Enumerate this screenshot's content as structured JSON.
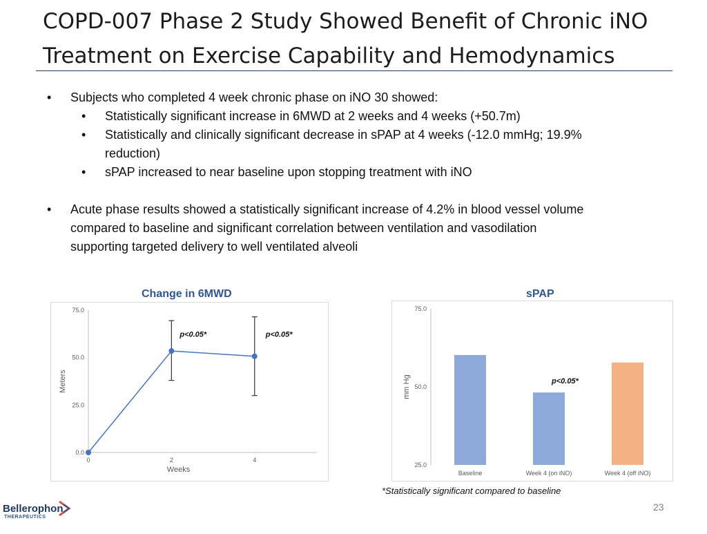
{
  "slide": {
    "title_line1": "COPD-007 Phase 2 Study Showed Benefit of Chronic iNO",
    "title_line2": "Treatment on Exercise Capability and Hemodynamics",
    "page_number": "23",
    "footnote": "*Statistically significant compared to baseline",
    "logo": {
      "name": "Bellerophon",
      "sub": "THERAPEUTICS"
    }
  },
  "bullets": {
    "b1": "Subjects who completed 4 week chronic phase on iNO 30 showed:",
    "b1_sub1": "Statistically significant increase in 6MWD at 2 weeks and 4 weeks (+50.7m)",
    "b1_sub2_line1": "Statistically and clinically significant decrease in sPAP at 4 weeks (-12.0 mmHg; 19.9%",
    "b1_sub2_line2": "reduction)",
    "b1_sub3": "sPAP increased to near baseline upon stopping treatment with iNO",
    "b2_line1": "Acute phase results showed a statistically significant increase of 4.2% in blood vessel volume",
    "b2_line2": "compared to baseline and significant correlation between ventilation and vasodilation",
    "b2_line3": "supporting targeted delivery to well ventilated alveoli",
    "bullet_char": "•"
  },
  "chart_data": [
    {
      "type": "line",
      "title": "Change in 6MWD",
      "xlabel": "Weeks",
      "ylabel": "Meters",
      "x": [
        0,
        2,
        4
      ],
      "y": [
        0,
        53.5,
        50.7
      ],
      "error_low": [
        0,
        38,
        30
      ],
      "error_high": [
        0,
        69.5,
        71.5
      ],
      "xlim": [
        0,
        5.5
      ],
      "ylim": [
        0,
        75
      ],
      "xticks": [
        "0",
        "2",
        "4"
      ],
      "yticks": [
        "0.0",
        "25.0",
        "50.0",
        "75.0"
      ],
      "annotations": [
        "p<0.05*",
        "p<0.05*"
      ],
      "color": "#4472c4",
      "grid": false
    },
    {
      "type": "bar",
      "title": "sPAP",
      "ylabel": "mm Hg",
      "categories": [
        "Baseline",
        "Week 4 (on iNO)",
        "Week 4 (off iNO)"
      ],
      "values": [
        60.2,
        48.2,
        57.8
      ],
      "colors": [
        "#8eaadb",
        "#8eaadb",
        "#f4b183"
      ],
      "ylim": [
        25,
        75
      ],
      "yticks": [
        "25.0",
        "50.0",
        "75.0"
      ],
      "annotation": "p<0.05*",
      "grid": false
    }
  ]
}
